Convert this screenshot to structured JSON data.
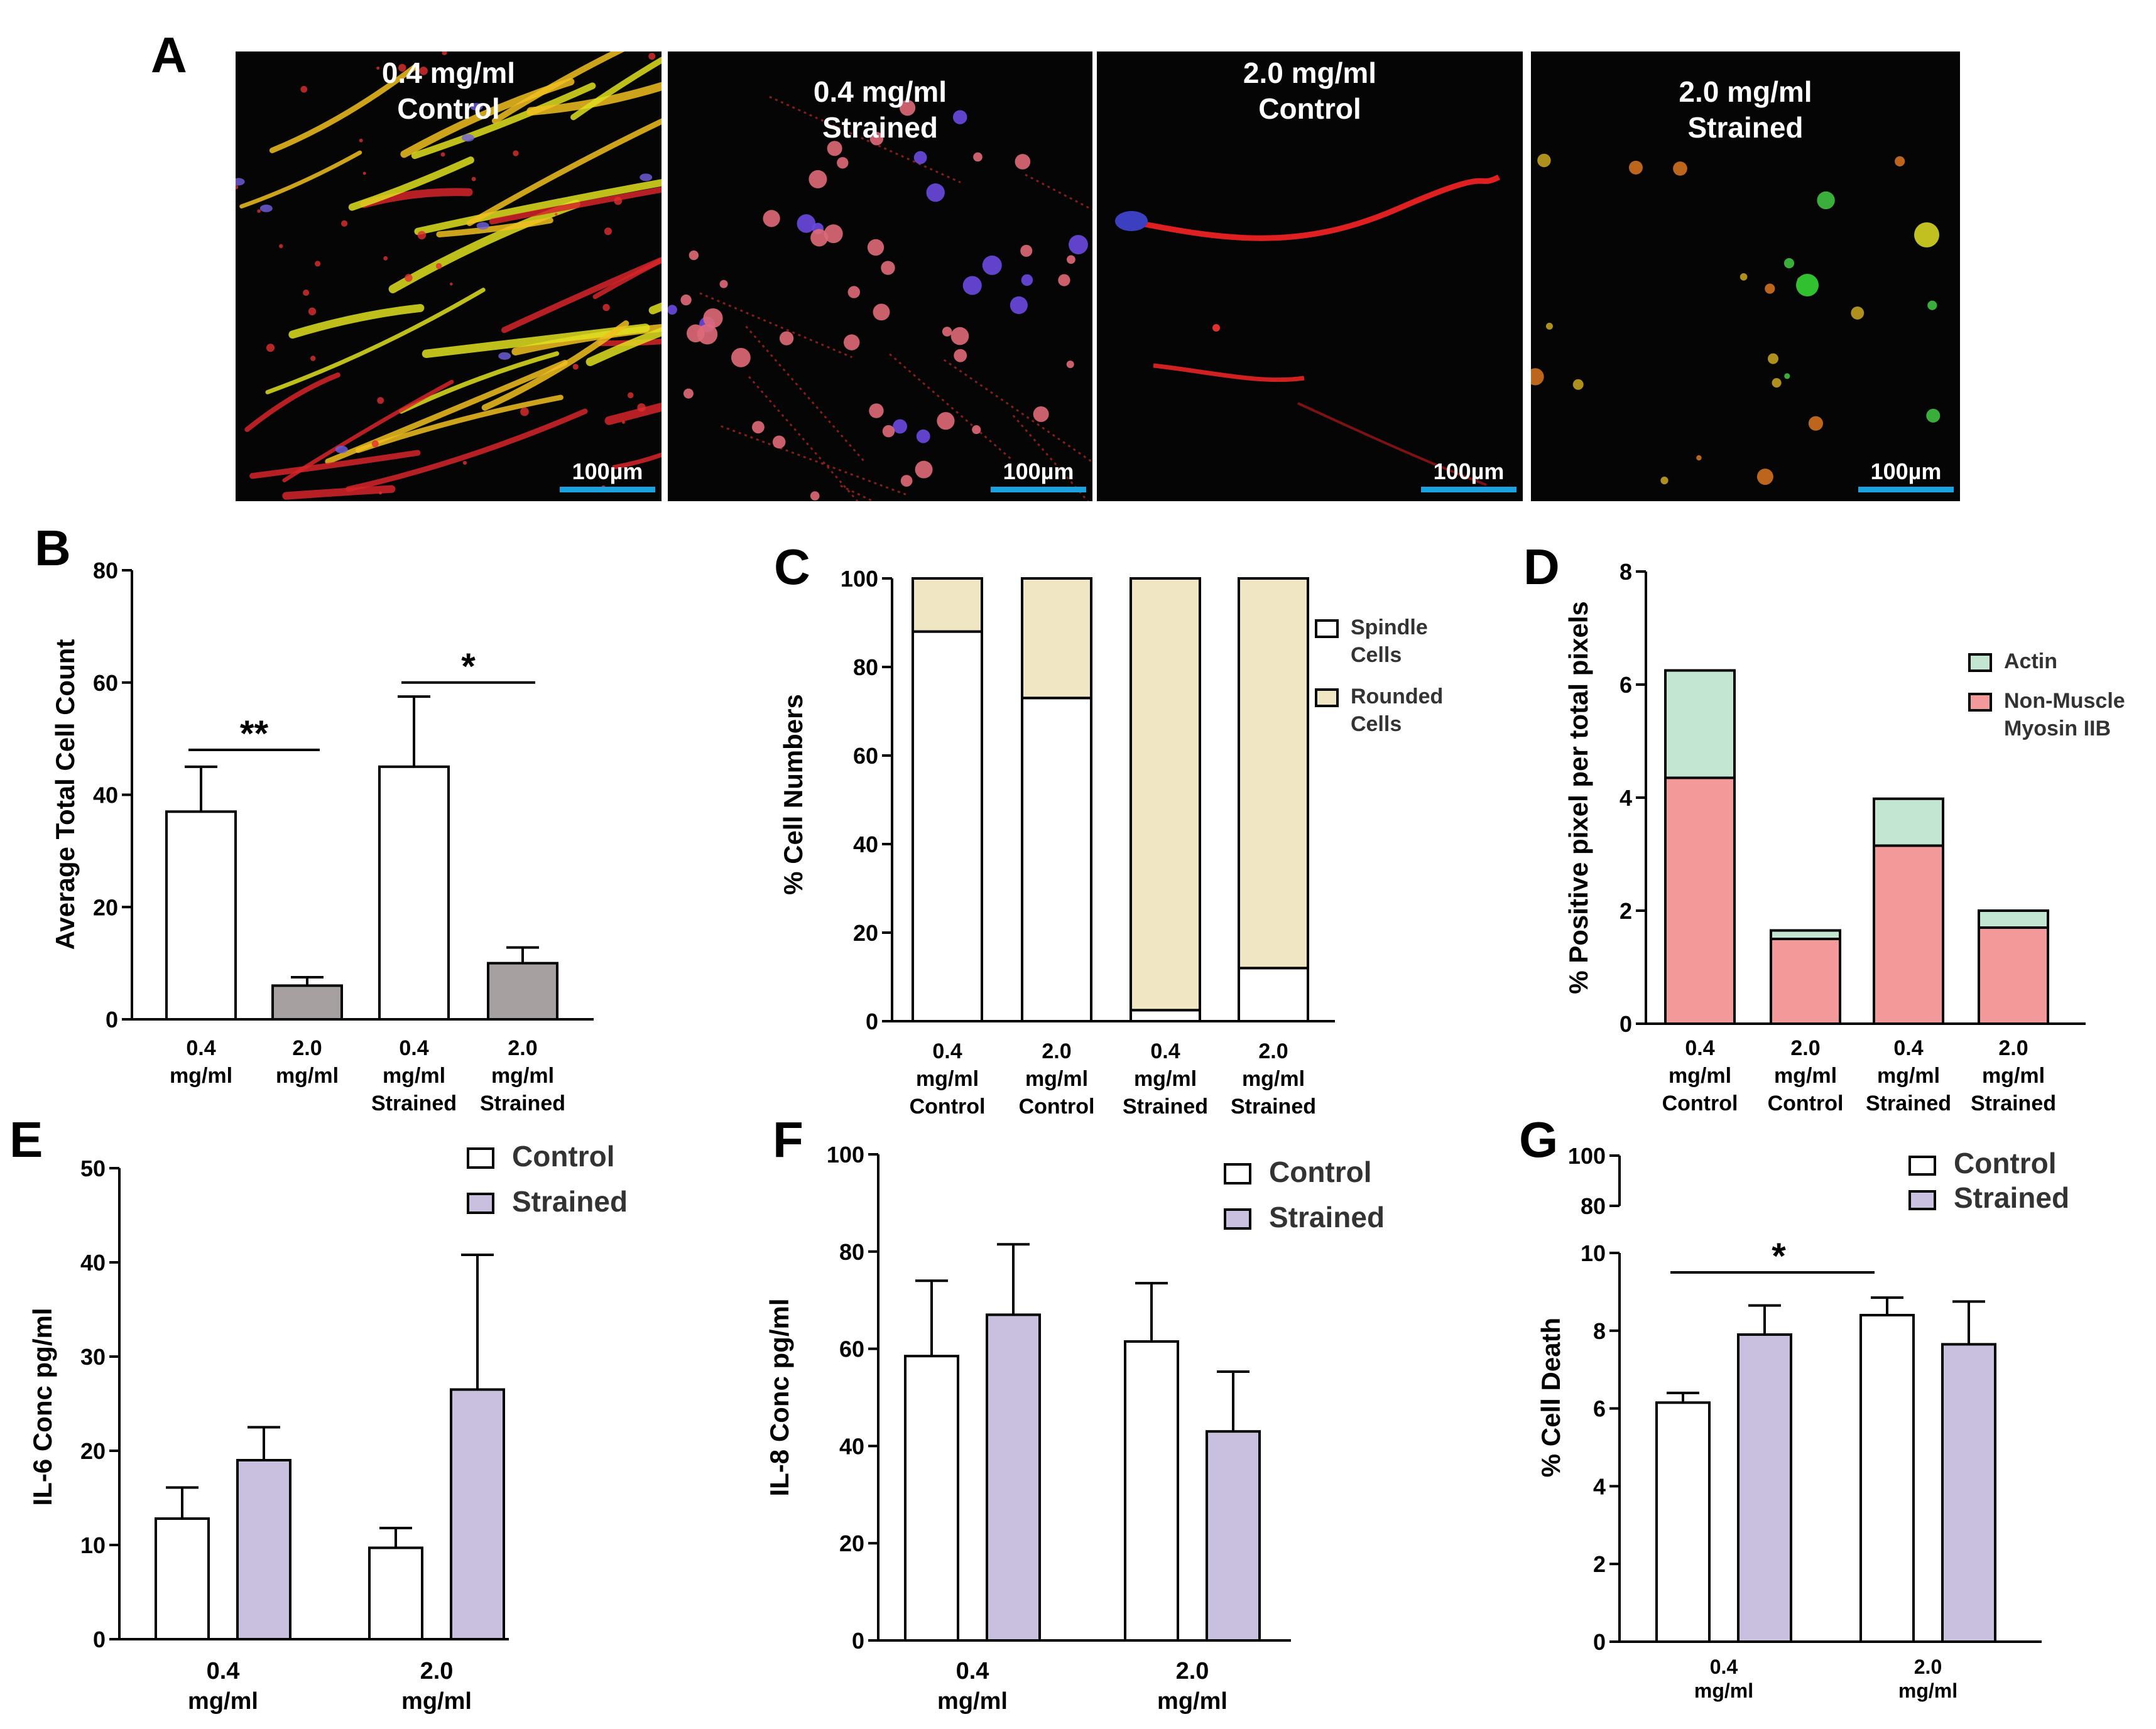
{
  "panels": {
    "A": {
      "letter": "A",
      "images": [
        {
          "title_line1": "0.4 mg/ml",
          "title_line2": "Control",
          "scale_label": "100µm",
          "style": "yellow-spindle"
        },
        {
          "title_line1": "0.4 mg/ml",
          "title_line2": "Strained",
          "scale_label": "100µm",
          "style": "rounded-magenta"
        },
        {
          "title_line1": "2.0 mg/ml",
          "title_line2": "Control",
          "scale_label": "100µm",
          "style": "red-sparse"
        },
        {
          "title_line1": "2.0 mg/ml",
          "title_line2": "Strained",
          "scale_label": "100µm",
          "style": "sparse-rounded"
        }
      ],
      "scale_bar_color": "#1aa3e0"
    },
    "B": {
      "letter": "B"
    },
    "C": {
      "letter": "C"
    },
    "D": {
      "letter": "D"
    },
    "E": {
      "letter": "E"
    },
    "F": {
      "letter": "F"
    },
    "G": {
      "letter": "G"
    }
  },
  "colors": {
    "white_bar": "#ffffff",
    "gray_bar": "#a6a0a0",
    "cream": "#f0e6c4",
    "actin_green": "#c3e6d3",
    "myosin_pink": "#f4999a",
    "lavender": "#c9bfdf",
    "axis": "#000000"
  },
  "chart_data": [
    {
      "panel": "B",
      "type": "bar",
      "title": "",
      "ylabel": "Average Total Cell Count",
      "xlabel": "",
      "ylim": [
        0,
        80
      ],
      "yticks": [
        0,
        20,
        40,
        60,
        80
      ],
      "categories": [
        [
          "0.4",
          "mg/ml"
        ],
        [
          "2.0",
          "mg/ml"
        ],
        [
          "0.4",
          "mg/ml",
          "Strained"
        ],
        [
          "2.0",
          "mg/ml",
          "Strained"
        ]
      ],
      "values": [
        37,
        6,
        45,
        10
      ],
      "errors": [
        8,
        1.5,
        12.5,
        2.8
      ],
      "bar_colors": [
        "#ffffff",
        "#a6a0a0",
        "#ffffff",
        "#a6a0a0"
      ],
      "significance": [
        {
          "from": 0,
          "to": 1,
          "label": "**",
          "y": 48
        },
        {
          "from": 2,
          "to": 3,
          "label": "*",
          "y": 60
        }
      ]
    },
    {
      "panel": "C",
      "type": "bar",
      "title": "",
      "ylabel": "% Cell Numbers",
      "xlabel": "",
      "ylim": [
        0,
        100
      ],
      "yticks": [
        0,
        20,
        40,
        60,
        80,
        100
      ],
      "stacked": true,
      "categories": [
        [
          "0.4",
          "mg/ml",
          "Control"
        ],
        [
          "2.0",
          "mg/ml",
          "Control"
        ],
        [
          "0.4",
          "mg/ml",
          "Strained"
        ],
        [
          "2.0",
          "mg/ml",
          "Strained"
        ]
      ],
      "series": [
        {
          "name": "Spindle Cells",
          "legend_line1": "Spindle",
          "legend_line2": "Cells",
          "color": "#ffffff",
          "values": [
            88,
            73,
            2.5,
            12
          ]
        },
        {
          "name": "Rounded Cells",
          "legend_line1": "Rounded",
          "legend_line2": "Cells",
          "color": "#f0e6c4",
          "values": [
            12,
            27,
            97.5,
            88
          ]
        }
      ],
      "legend_position": "right"
    },
    {
      "panel": "D",
      "type": "bar",
      "title": "",
      "ylabel": "% Positive pixel per total pixels",
      "xlabel": "",
      "ylim": [
        0,
        8
      ],
      "yticks": [
        0,
        2,
        4,
        6,
        8
      ],
      "stacked": true,
      "categories": [
        [
          "0.4",
          "mg/ml",
          "Control"
        ],
        [
          "2.0",
          "mg/ml",
          "Control"
        ],
        [
          "0.4",
          "mg/ml",
          "Strained"
        ],
        [
          "2.0",
          "mg/ml",
          "Strained"
        ]
      ],
      "series": [
        {
          "name": "Non-Muscle Myosin IIB",
          "legend_line1": "Non-Muscle",
          "legend_line2": "Myosin IIB",
          "color": "#f4999a",
          "values": [
            4.35,
            1.5,
            3.15,
            1.7
          ]
        },
        {
          "name": "Actin",
          "legend_line1": "Actin",
          "legend_line2": "",
          "color": "#c3e6d3",
          "values": [
            1.9,
            0.15,
            0.83,
            0.3
          ]
        }
      ],
      "legend_position": "top-right"
    },
    {
      "panel": "E",
      "type": "bar",
      "title": "",
      "ylabel": "IL-6 Conc pg/ml",
      "xlabel": "",
      "ylim": [
        0,
        50
      ],
      "yticks": [
        0,
        10,
        20,
        30,
        40,
        50
      ],
      "categories": [
        [
          "0.4",
          "mg/ml"
        ],
        [
          "2.0",
          "mg/ml"
        ]
      ],
      "series": [
        {
          "name": "Control",
          "color": "#ffffff",
          "values": [
            12.8,
            9.7
          ],
          "errors": [
            3.3,
            2.1
          ]
        },
        {
          "name": "Strained",
          "color": "#c9bfdf",
          "values": [
            19,
            26.5
          ],
          "errors": [
            3.5,
            14.3
          ]
        }
      ],
      "legend_position": "top-right"
    },
    {
      "panel": "F",
      "type": "bar",
      "title": "",
      "ylabel": "IL-8 Conc pg/ml",
      "xlabel": "",
      "ylim": [
        0,
        100
      ],
      "yticks": [
        0,
        20,
        40,
        60,
        80,
        100
      ],
      "categories": [
        [
          "0.4",
          "mg/ml"
        ],
        [
          "2.0",
          "mg/ml"
        ]
      ],
      "series": [
        {
          "name": "Control",
          "color": "#ffffff",
          "values": [
            58.5,
            61.5
          ],
          "errors": [
            15.5,
            12
          ]
        },
        {
          "name": "Strained",
          "color": "#c9bfdf",
          "values": [
            67,
            43
          ],
          "errors": [
            14.5,
            12.3
          ]
        }
      ],
      "legend_position": "top-right"
    },
    {
      "panel": "G",
      "type": "bar",
      "title": "",
      "ylabel": "% Cell Death",
      "xlabel": "",
      "ylim": [
        0,
        100
      ],
      "axis_break": [
        10,
        80
      ],
      "yticks": [
        0,
        2,
        4,
        6,
        8,
        10,
        80,
        100
      ],
      "categories": [
        [
          "0.4",
          "mg/ml"
        ],
        [
          "2.0",
          "mg/ml"
        ]
      ],
      "series": [
        {
          "name": "Control",
          "color": "#ffffff",
          "values": [
            6.15,
            8.4
          ],
          "errors": [
            0.25,
            0.45
          ]
        },
        {
          "name": "Strained",
          "color": "#c9bfdf",
          "values": [
            7.9,
            7.65
          ],
          "errors": [
            0.75,
            1.1
          ]
        }
      ],
      "significance": [
        {
          "from": "0.4 mg/ml Control",
          "to": "2.0 mg/ml Control",
          "label": "*",
          "y": 9.5
        }
      ],
      "legend_position": "top-right"
    }
  ]
}
